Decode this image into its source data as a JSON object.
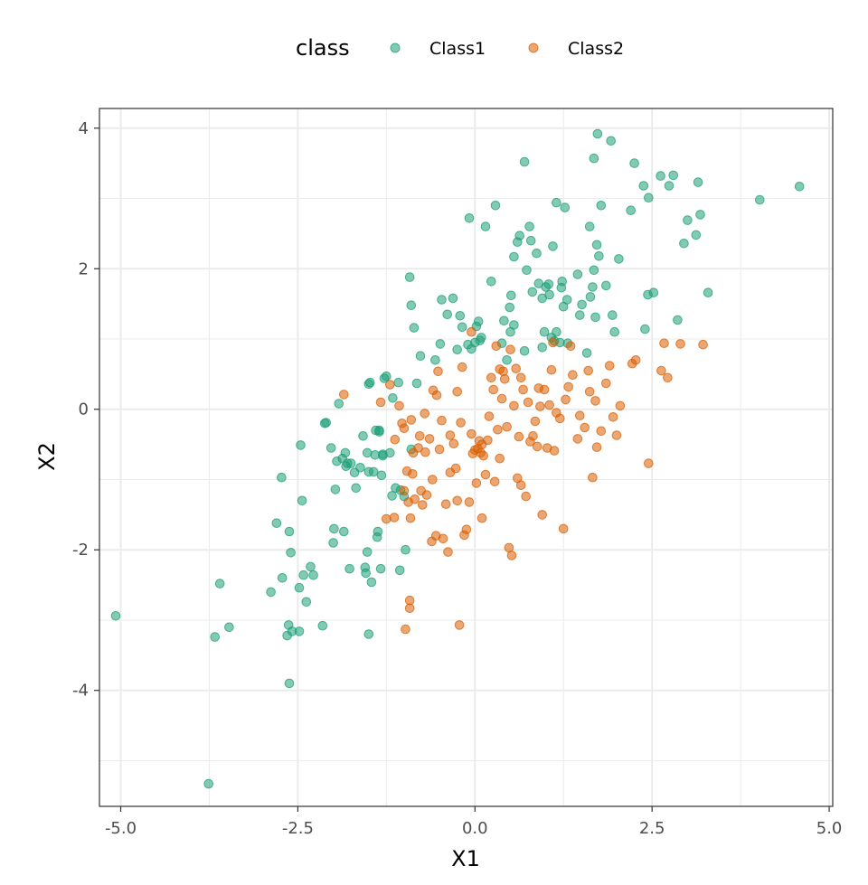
{
  "chart_data": {
    "type": "scatter",
    "title": "",
    "xlabel": "X1",
    "ylabel": "X2",
    "xlim": [
      -5.3,
      5.05
    ],
    "ylim": [
      -5.65,
      4.28
    ],
    "x_ticks": [
      -5.0,
      -2.5,
      0.0,
      2.5,
      5.0
    ],
    "x_tick_labels": [
      "-5.0",
      "-2.5",
      "0.0",
      "2.5",
      "5.0"
    ],
    "y_ticks": [
      -4,
      -2,
      0,
      2,
      4
    ],
    "y_tick_labels": [
      "-4",
      "-2",
      "0",
      "2",
      "4"
    ],
    "grid": true,
    "legend": {
      "title": "class",
      "position": "top"
    },
    "series": [
      {
        "name": "Class1",
        "color": "#1B9E77",
        "points": [
          [
            -5.07,
            -2.94
          ],
          [
            -3.76,
            -5.33
          ],
          [
            -3.67,
            -3.24
          ],
          [
            -3.6,
            -2.48
          ],
          [
            -3.47,
            -3.1
          ],
          [
            -2.88,
            -2.6
          ],
          [
            -2.8,
            -1.62
          ],
          [
            -2.73,
            -0.97
          ],
          [
            -2.72,
            -2.4
          ],
          [
            -2.65,
            -3.22
          ],
          [
            -2.63,
            -3.07
          ],
          [
            -2.62,
            -1.74
          ],
          [
            -2.62,
            -3.9
          ],
          [
            -2.6,
            -2.04
          ],
          [
            -2.58,
            -3.16
          ],
          [
            -2.48,
            -2.54
          ],
          [
            -2.48,
            -3.16
          ],
          [
            -2.46,
            -0.51
          ],
          [
            -2.44,
            -1.3
          ],
          [
            -2.42,
            -2.36
          ],
          [
            -2.38,
            -2.74
          ],
          [
            -2.32,
            -2.24
          ],
          [
            -2.28,
            -2.36
          ],
          [
            -2.15,
            -3.08
          ],
          [
            -2.12,
            -0.2
          ],
          [
            -2.1,
            -0.19
          ],
          [
            -2.03,
            -0.55
          ],
          [
            -2.0,
            -1.9
          ],
          [
            -1.99,
            -1.7
          ],
          [
            -1.97,
            -1.14
          ],
          [
            -1.95,
            -0.74
          ],
          [
            -1.92,
            0.08
          ],
          [
            -1.87,
            -0.7
          ],
          [
            -1.85,
            -1.74
          ],
          [
            -1.83,
            -0.62
          ],
          [
            -1.82,
            -0.81
          ],
          [
            -1.8,
            -0.77
          ],
          [
            -1.77,
            -2.27
          ],
          [
            -1.75,
            -0.77
          ],
          [
            -1.7,
            -0.9
          ],
          [
            -1.68,
            -1.12
          ],
          [
            -1.62,
            -0.83
          ],
          [
            -1.58,
            -0.38
          ],
          [
            -1.55,
            -2.25
          ],
          [
            -1.54,
            -2.33
          ],
          [
            -1.52,
            -2.03
          ],
          [
            -1.52,
            -0.62
          ],
          [
            -1.5,
            -0.89
          ],
          [
            -1.5,
            -3.2
          ],
          [
            -1.5,
            0.36
          ],
          [
            -1.48,
            0.38
          ],
          [
            -1.46,
            -2.46
          ],
          [
            -1.43,
            -0.89
          ],
          [
            -1.41,
            -0.65
          ],
          [
            -1.4,
            -0.3
          ],
          [
            -1.38,
            -1.82
          ],
          [
            -1.37,
            -1.74
          ],
          [
            -1.35,
            -0.3
          ],
          [
            -1.35,
            -0.32
          ],
          [
            -1.33,
            -2.27
          ],
          [
            -1.32,
            -0.94
          ],
          [
            -1.3,
            -0.64
          ],
          [
            -1.3,
            -0.66
          ],
          [
            -1.28,
            0.44
          ],
          [
            -1.25,
            0.47
          ],
          [
            -1.2,
            -0.62
          ],
          [
            -1.17,
            -1.23
          ],
          [
            -1.16,
            0.16
          ],
          [
            -1.12,
            -1.12
          ],
          [
            -1.08,
            0.38
          ],
          [
            -1.06,
            -2.29
          ],
          [
            -1.05,
            -1.15
          ],
          [
            -1.0,
            -1.24
          ],
          [
            -0.98,
            -2.0
          ],
          [
            -0.92,
            1.88
          ],
          [
            -0.9,
            1.48
          ],
          [
            -0.9,
            -0.57
          ],
          [
            -0.86,
            1.16
          ],
          [
            -0.82,
            0.37
          ],
          [
            -0.77,
            0.76
          ],
          [
            -0.56,
            0.7
          ],
          [
            -0.49,
            0.93
          ],
          [
            -0.47,
            1.56
          ],
          [
            -0.39,
            1.35
          ],
          [
            -0.31,
            1.58
          ],
          [
            -0.25,
            0.85
          ],
          [
            -0.21,
            1.33
          ],
          [
            -0.18,
            1.17
          ],
          [
            -0.1,
            0.92
          ],
          [
            -0.08,
            2.72
          ],
          [
            -0.05,
            0.86
          ],
          [
            0.0,
            0.95
          ],
          [
            0.02,
            1.18
          ],
          [
            0.05,
            1.25
          ],
          [
            0.07,
            0.98
          ],
          [
            0.09,
            1.02
          ],
          [
            0.15,
            2.6
          ],
          [
            0.23,
            1.82
          ],
          [
            0.29,
            2.9
          ],
          [
            0.38,
            0.94
          ],
          [
            0.41,
            1.26
          ],
          [
            0.45,
            0.7
          ],
          [
            0.49,
            1.45
          ],
          [
            0.5,
            1.1
          ],
          [
            0.51,
            1.62
          ],
          [
            0.55,
            1.2
          ],
          [
            0.55,
            2.17
          ],
          [
            0.6,
            2.38
          ],
          [
            0.63,
            2.47
          ],
          [
            0.7,
            0.83
          ],
          [
            0.7,
            3.52
          ],
          [
            0.73,
            1.98
          ],
          [
            0.77,
            2.6
          ],
          [
            0.79,
            2.4
          ],
          [
            0.81,
            1.67
          ],
          [
            0.87,
            2.22
          ],
          [
            0.9,
            1.79
          ],
          [
            0.95,
            1.58
          ],
          [
            0.95,
            0.88
          ],
          [
            0.98,
            1.1
          ],
          [
            1.0,
            1.74
          ],
          [
            1.04,
            1.78
          ],
          [
            1.05,
            1.63
          ],
          [
            1.08,
            1.02
          ],
          [
            1.1,
            2.32
          ],
          [
            1.12,
            0.97
          ],
          [
            1.15,
            2.94
          ],
          [
            1.15,
            1.1
          ],
          [
            1.2,
            0.95
          ],
          [
            1.22,
            1.73
          ],
          [
            1.23,
            1.82
          ],
          [
            1.25,
            1.46
          ],
          [
            1.27,
            2.87
          ],
          [
            1.3,
            1.56
          ],
          [
            1.31,
            0.94
          ],
          [
            1.45,
            1.92
          ],
          [
            1.48,
            1.34
          ],
          [
            1.51,
            1.49
          ],
          [
            1.58,
            0.8
          ],
          [
            1.62,
            2.6
          ],
          [
            1.63,
            1.6
          ],
          [
            1.66,
            1.74
          ],
          [
            1.68,
            3.57
          ],
          [
            1.68,
            1.98
          ],
          [
            1.7,
            1.31
          ],
          [
            1.72,
            2.34
          ],
          [
            1.73,
            3.92
          ],
          [
            1.75,
            2.18
          ],
          [
            1.78,
            2.9
          ],
          [
            1.85,
            1.76
          ],
          [
            1.92,
            3.82
          ],
          [
            1.94,
            1.34
          ],
          [
            1.97,
            1.1
          ],
          [
            2.03,
            2.14
          ],
          [
            2.2,
            2.83
          ],
          [
            2.25,
            3.5
          ],
          [
            2.38,
            3.18
          ],
          [
            2.4,
            1.14
          ],
          [
            2.44,
            1.63
          ],
          [
            2.45,
            3.01
          ],
          [
            2.52,
            1.66
          ],
          [
            2.62,
            3.32
          ],
          [
            2.74,
            3.18
          ],
          [
            2.8,
            3.33
          ],
          [
            2.86,
            1.27
          ],
          [
            2.95,
            2.36
          ],
          [
            3.0,
            2.69
          ],
          [
            3.12,
            2.48
          ],
          [
            3.15,
            3.23
          ],
          [
            3.18,
            2.77
          ],
          [
            3.29,
            1.66
          ],
          [
            4.02,
            2.98
          ],
          [
            4.58,
            3.17
          ]
        ]
      },
      {
        "name": "Class2",
        "color": "#D95F02",
        "points": [
          [
            -1.85,
            0.21
          ],
          [
            -1.33,
            0.1
          ],
          [
            -1.25,
            -1.56
          ],
          [
            -1.2,
            0.35
          ],
          [
            -1.14,
            -1.54
          ],
          [
            -1.13,
            -0.43
          ],
          [
            -1.07,
            0.05
          ],
          [
            -1.03,
            -0.2
          ],
          [
            -1.0,
            -1.16
          ],
          [
            -1.0,
            -0.27
          ],
          [
            -0.98,
            -3.13
          ],
          [
            -0.96,
            -0.88
          ],
          [
            -0.94,
            -1.32
          ],
          [
            -0.92,
            -2.72
          ],
          [
            -0.92,
            -2.83
          ],
          [
            -0.91,
            -1.55
          ],
          [
            -0.9,
            -0.15
          ],
          [
            -0.88,
            -0.92
          ],
          [
            -0.87,
            -0.62
          ],
          [
            -0.85,
            -1.28
          ],
          [
            -0.78,
            -0.38
          ],
          [
            -0.76,
            -1.16
          ],
          [
            -0.74,
            -1.36
          ],
          [
            -0.71,
            -0.06
          ],
          [
            -0.7,
            -0.61
          ],
          [
            -0.68,
            -1.22
          ],
          [
            -0.64,
            -0.42
          ],
          [
            -0.61,
            -1.88
          ],
          [
            -0.59,
            0.27
          ],
          [
            -0.55,
            -1.8
          ],
          [
            -0.54,
            0.2
          ],
          [
            -0.52,
            0.54
          ],
          [
            -0.5,
            -0.57
          ],
          [
            -0.47,
            -0.16
          ],
          [
            -0.45,
            -1.84
          ],
          [
            -0.41,
            -1.35
          ],
          [
            -0.38,
            -2.03
          ],
          [
            -0.35,
            -0.37
          ],
          [
            -0.3,
            -0.49
          ],
          [
            -0.27,
            -0.84
          ],
          [
            -0.25,
            -1.3
          ],
          [
            -0.22,
            -3.07
          ],
          [
            -0.2,
            -0.19
          ],
          [
            -0.15,
            -1.79
          ],
          [
            -0.12,
            -1.71
          ],
          [
            -0.08,
            -1.32
          ],
          [
            -0.05,
            -0.35
          ],
          [
            -0.03,
            -0.63
          ],
          [
            0.0,
            -0.58
          ],
          [
            0.02,
            -1.05
          ],
          [
            0.04,
            -0.56
          ],
          [
            0.06,
            -0.45
          ],
          [
            0.08,
            -0.62
          ],
          [
            0.1,
            -0.5
          ],
          [
            0.12,
            -0.66
          ],
          [
            0.15,
            -0.93
          ],
          [
            0.18,
            -0.44
          ],
          [
            0.2,
            -0.1
          ],
          [
            0.23,
            0.45
          ],
          [
            0.26,
            0.28
          ],
          [
            0.28,
            -1.03
          ],
          [
            0.32,
            -0.29
          ],
          [
            0.35,
            0.57
          ],
          [
            0.38,
            0.15
          ],
          [
            0.4,
            0.54
          ],
          [
            0.42,
            0.43
          ],
          [
            0.45,
            -0.25
          ],
          [
            0.48,
            -1.97
          ],
          [
            0.52,
            -2.08
          ],
          [
            0.55,
            0.05
          ],
          [
            0.58,
            0.58
          ],
          [
            0.6,
            -0.98
          ],
          [
            0.62,
            -0.39
          ],
          [
            0.65,
            -1.08
          ],
          [
            0.68,
            0.28
          ],
          [
            0.72,
            -1.24
          ],
          [
            0.75,
            0.1
          ],
          [
            0.78,
            -0.46
          ],
          [
            0.82,
            -0.38
          ],
          [
            0.85,
            -0.17
          ],
          [
            0.88,
            -0.53
          ],
          [
            0.92,
            0.04
          ],
          [
            0.95,
            -1.5
          ],
          [
            0.98,
            0.28
          ],
          [
            1.02,
            -0.55
          ],
          [
            1.05,
            0.06
          ],
          [
            1.08,
            0.56
          ],
          [
            1.12,
            -0.59
          ],
          [
            1.15,
            -0.05
          ],
          [
            1.2,
            -0.13
          ],
          [
            1.25,
            -1.7
          ],
          [
            1.28,
            0.14
          ],
          [
            1.32,
            0.32
          ],
          [
            1.38,
            0.49
          ],
          [
            1.45,
            -0.42
          ],
          [
            1.48,
            -0.09
          ],
          [
            1.55,
            -0.26
          ],
          [
            1.62,
            0.25
          ],
          [
            1.66,
            -0.97
          ],
          [
            1.72,
            -0.54
          ],
          [
            1.78,
            -0.31
          ],
          [
            1.85,
            0.37
          ],
          [
            1.9,
            0.62
          ],
          [
            1.95,
            -0.11
          ],
          [
            2.0,
            -0.37
          ],
          [
            2.05,
            0.05
          ],
          [
            2.22,
            0.65
          ],
          [
            2.27,
            0.7
          ],
          [
            2.45,
            -0.77
          ],
          [
            2.63,
            0.55
          ],
          [
            2.67,
            0.94
          ],
          [
            2.72,
            0.45
          ],
          [
            2.9,
            0.93
          ],
          [
            3.22,
            0.92
          ],
          [
            -0.8,
            -0.55
          ],
          [
            -0.6,
            -1.0
          ],
          [
            -0.35,
            -0.9
          ],
          [
            -0.18,
            0.6
          ],
          [
            -0.05,
            1.1
          ],
          [
            0.1,
            -1.55
          ],
          [
            0.3,
            0.9
          ],
          [
            0.5,
            0.85
          ],
          [
            0.65,
            0.45
          ],
          [
            0.9,
            0.3
          ],
          [
            1.1,
            0.95
          ],
          [
            1.35,
            0.9
          ],
          [
            1.6,
            0.55
          ],
          [
            1.7,
            0.12
          ],
          [
            0.35,
            -0.7
          ],
          [
            -0.25,
            0.25
          ]
        ]
      }
    ]
  }
}
